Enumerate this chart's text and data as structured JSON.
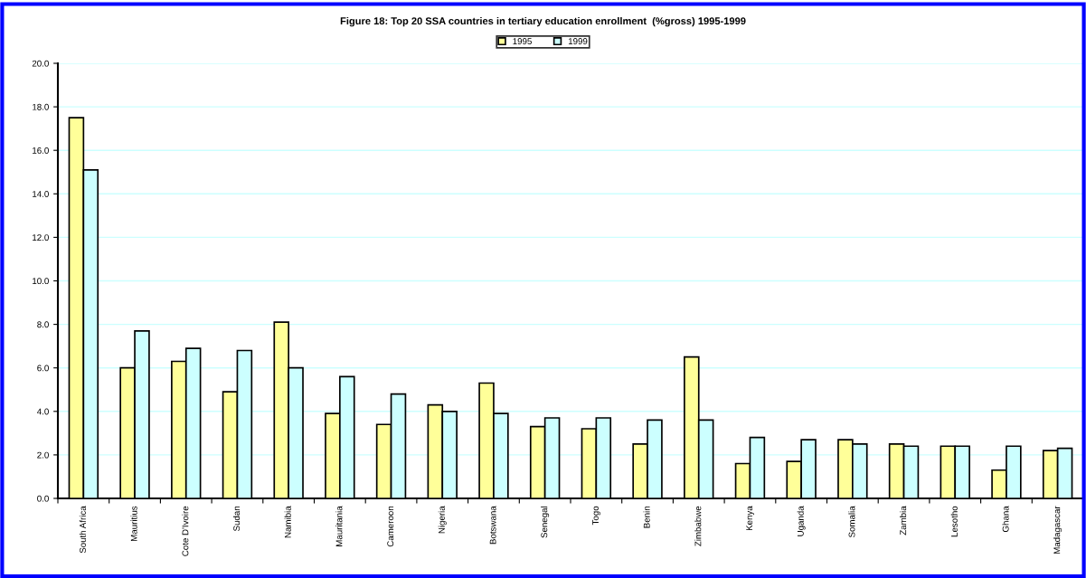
{
  "chart_data": {
    "type": "bar",
    "title": "Figure 18: Top 20 SSA countries in tertiary education enrollment  (%gross) 1995-1999",
    "categories": [
      "South Africa",
      "Mauritius",
      "Cote D'Ivoire",
      "Sudan",
      "Namibia",
      "Mauritania",
      "Cameroon",
      "Nigeria",
      "Botswana",
      "Senegal",
      "Togo",
      "Benin",
      "Zimbabwe",
      "Kenya",
      "Uganda",
      "Somalia",
      "Zambia",
      "Lesotho",
      "Ghana",
      "Madagascar"
    ],
    "series": [
      {
        "name": "1995",
        "color": "#ffff99",
        "values": [
          17.5,
          6.0,
          6.3,
          4.9,
          8.1,
          3.9,
          3.4,
          4.3,
          5.3,
          3.3,
          3.2,
          2.5,
          6.5,
          1.6,
          1.7,
          2.7,
          2.5,
          2.4,
          1.3,
          2.2
        ]
      },
      {
        "name": "1999",
        "color": "#ccffff",
        "values": [
          15.1,
          7.7,
          6.9,
          6.8,
          6.0,
          5.6,
          4.8,
          4.0,
          3.9,
          3.7,
          3.7,
          3.6,
          3.6,
          2.8,
          2.7,
          2.5,
          2.4,
          2.4,
          2.4,
          2.3
        ]
      }
    ],
    "ylim": [
      0,
      20
    ],
    "yticks": [
      {
        "value": 0,
        "label": "0.0"
      },
      {
        "value": 2,
        "label": "2.0"
      },
      {
        "value": 4,
        "label": "4.0"
      },
      {
        "value": 6,
        "label": "6.0"
      },
      {
        "value": 8,
        "label": "8.0"
      },
      {
        "value": 10,
        "label": "10.0"
      },
      {
        "value": 12,
        "label": "12.0"
      },
      {
        "value": 14,
        "label": "14.0"
      },
      {
        "value": 16,
        "label": "16.0"
      },
      {
        "value": 18,
        "label": "18.0"
      },
      {
        "value": 20,
        "label": "20.0"
      }
    ],
    "grid": "y",
    "legend": "top"
  }
}
